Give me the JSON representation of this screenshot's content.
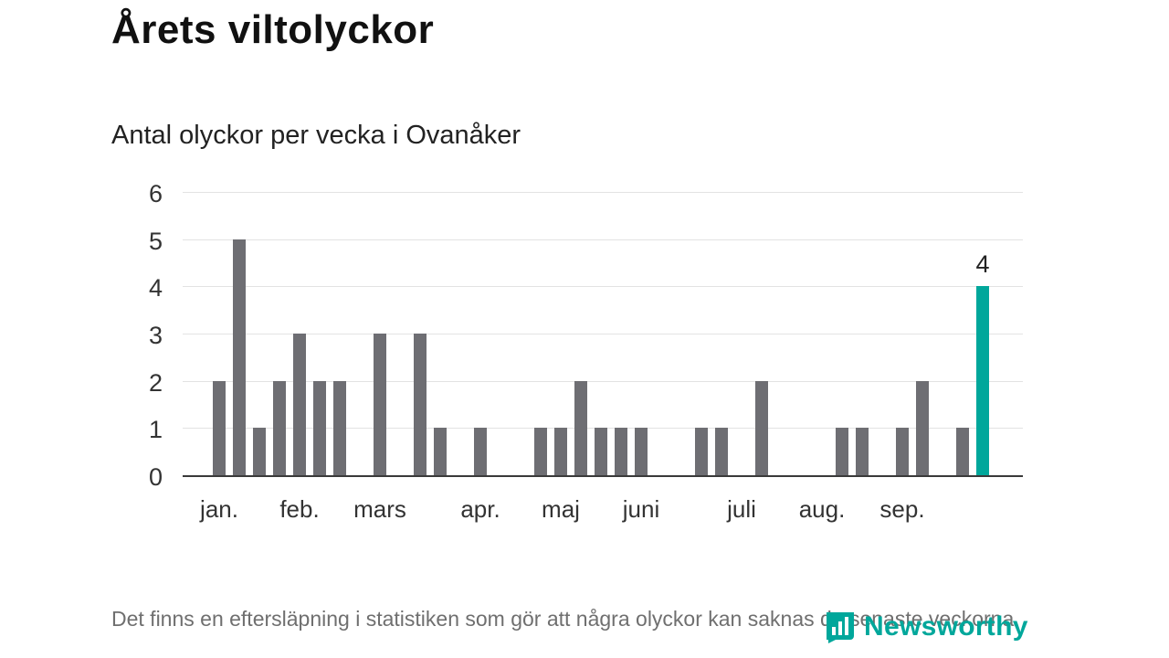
{
  "title": "Årets viltolyckor",
  "subtitle": "Antal olyckor per vecka i Ovanåker",
  "footnote": "Det finns en eftersläpning i statistiken som gör att några olyckor kan saknas de senaste veckorna.",
  "branding": {
    "name": "Newsworthy",
    "color": "#00a79b"
  },
  "colors": {
    "bar": "#6e6e73",
    "highlight": "#00a79b",
    "grid": "#e3e3e3",
    "axis": "#3a3a3a"
  },
  "chart_data": {
    "type": "bar",
    "title": "Årets viltolyckor",
    "subtitle": "Antal olyckor per vecka i Ovanåker",
    "x_unit": "vecka",
    "ylabel": "",
    "xlabel": "",
    "ylim": [
      0,
      6
    ],
    "yticks": [
      0,
      1,
      2,
      3,
      4,
      5,
      6
    ],
    "grid": true,
    "values": [
      2,
      5,
      1,
      2,
      3,
      2,
      2,
      0,
      3,
      0,
      3,
      1,
      0,
      1,
      0,
      0,
      1,
      1,
      2,
      1,
      1,
      1,
      0,
      0,
      1,
      1,
      0,
      2,
      0,
      0,
      0,
      1,
      1,
      0,
      1,
      2,
      0,
      1,
      4
    ],
    "highlight_index": 38,
    "highlight_label": "4",
    "month_labels": [
      {
        "label": "jan.",
        "week": 0
      },
      {
        "label": "feb.",
        "week": 4
      },
      {
        "label": "mars",
        "week": 8
      },
      {
        "label": "apr.",
        "week": 13
      },
      {
        "label": "maj",
        "week": 17
      },
      {
        "label": "juni",
        "week": 21
      },
      {
        "label": "juli",
        "week": 26
      },
      {
        "label": "aug.",
        "week": 30
      },
      {
        "label": "sep.",
        "week": 34
      }
    ]
  }
}
